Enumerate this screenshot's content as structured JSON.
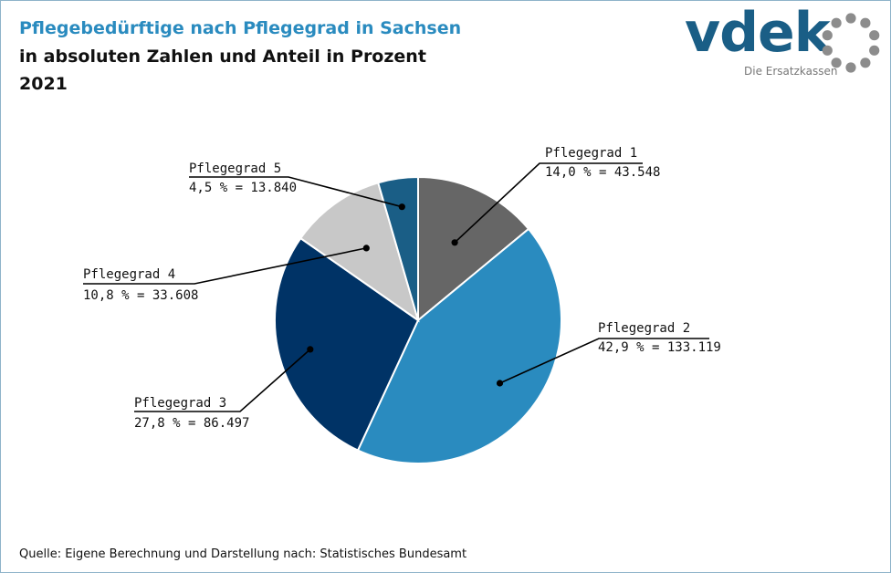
{
  "header": {
    "title": "Pflegebedürftige nach Pflegegrad in Sachsen",
    "subtitle": "in absoluten Zahlen und Anteil in Prozent",
    "year": "2021"
  },
  "logo": {
    "wordmark": "vdek",
    "tagline": "Die Ersatzkassen",
    "colors": {
      "wordmark": "#1a5e86",
      "dots": "#8c8c8c"
    }
  },
  "chart_data": {
    "type": "pie",
    "title": "Pflegebedürftige nach Pflegegrad in Sachsen",
    "slices": [
      {
        "name": "Pflegegrad 1",
        "percent": 14.0,
        "value": 43548,
        "text": "14,0 % = 43.548",
        "color": "#666666"
      },
      {
        "name": "Pflegegrad 2",
        "percent": 42.9,
        "value": 133119,
        "text": "42,9 % = 133.119",
        "color": "#2a8bbf"
      },
      {
        "name": "Pflegegrad 3",
        "percent": 27.8,
        "value": 86497,
        "text": "27,8 % = 86.497",
        "color": "#003366"
      },
      {
        "name": "Pflegegrad 4",
        "percent": 10.8,
        "value": 33608,
        "text": "10,8 % = 33.608",
        "color": "#c8c8c8"
      },
      {
        "name": "Pflegegrad 5",
        "percent": 4.5,
        "value": 13840,
        "text": "4,5 % = 13.840",
        "color": "#1a5e86"
      }
    ],
    "start_angle": "12 o'clock",
    "direction": "clockwise",
    "legend": "none (callout labels)"
  },
  "footer": {
    "source": "Quelle: Eigene Berechnung und Darstellung nach: Statistisches Bundesamt"
  }
}
